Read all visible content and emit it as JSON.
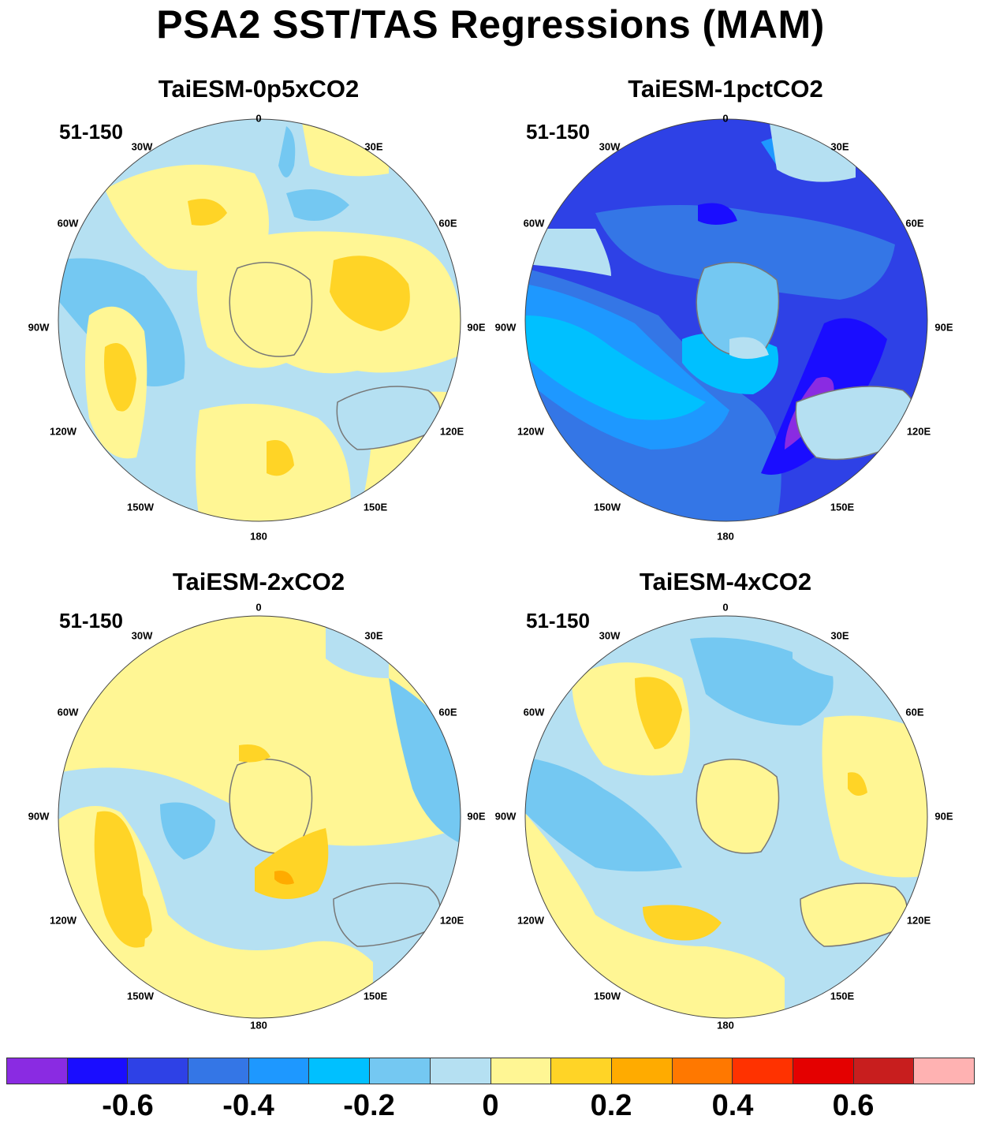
{
  "title": "PSA2 SST/TAS Regressions (MAM)",
  "panels": [
    {
      "title": "TaiESM-0p5xCO2",
      "period": "51-150"
    },
    {
      "title": "TaiESM-1pctCO2",
      "period": "51-150"
    },
    {
      "title": "TaiESM-2xCO2",
      "period": "51-150"
    },
    {
      "title": "TaiESM-4xCO2",
      "period": "51-150"
    }
  ],
  "lon_labels": [
    "0",
    "30E",
    "60E",
    "90E",
    "120E",
    "150E",
    "180",
    "150W",
    "120W",
    "90W",
    "60W",
    "30W"
  ],
  "colorbar": {
    "colors": [
      "#8a2be2",
      "#1a0dff",
      "#2e41e6",
      "#3476e6",
      "#1e98ff",
      "#00c0ff",
      "#74c8f2",
      "#b5e0f2",
      "#fff694",
      "#ffd426",
      "#ffab00",
      "#ff7800",
      "#ff3200",
      "#e40000",
      "#c81e1e",
      "#ffb2b2"
    ],
    "tick_labels": [
      "-0.6",
      "-0.4",
      "-0.2",
      "0",
      "0.2",
      "0.4",
      "0.6"
    ]
  }
}
